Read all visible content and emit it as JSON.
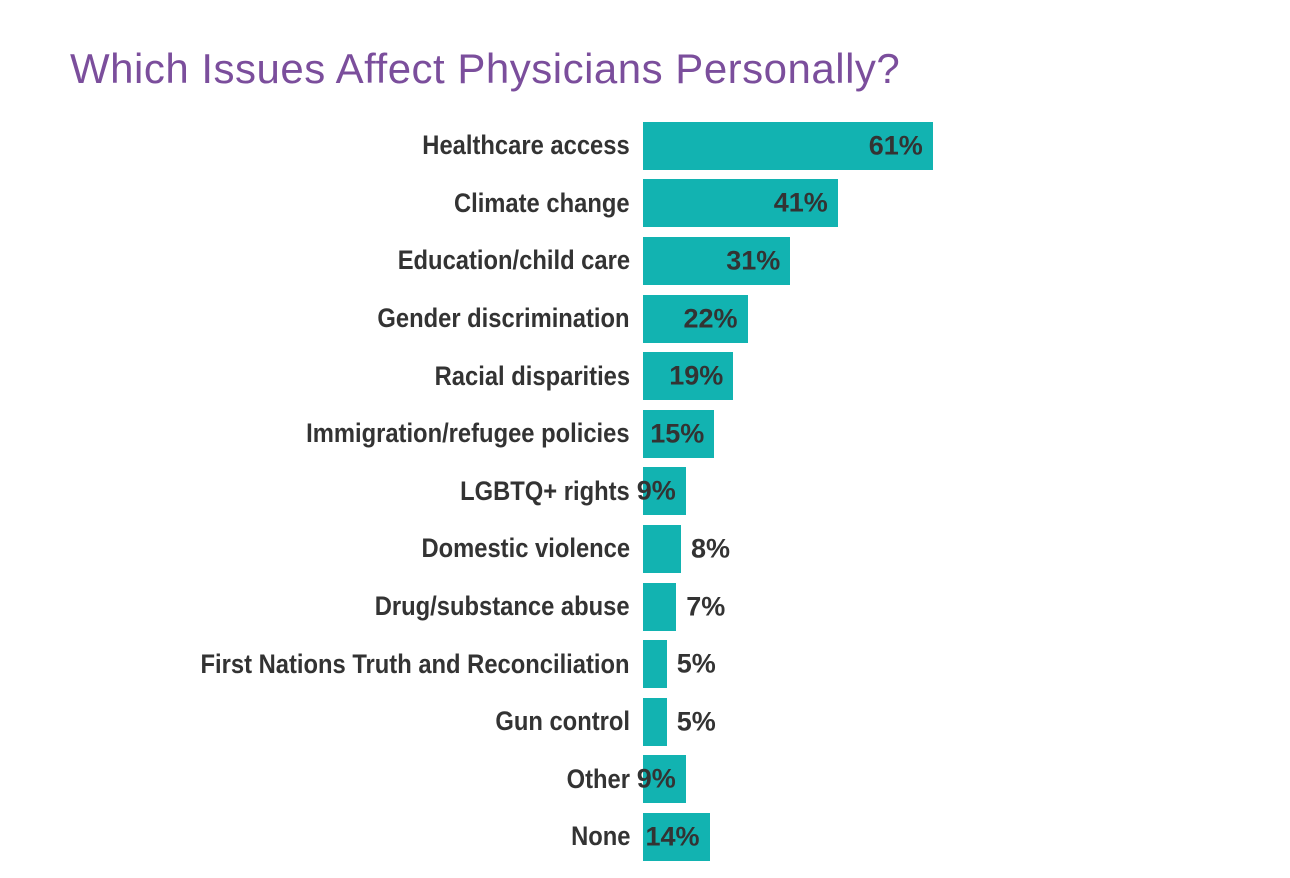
{
  "page": {
    "background": "#ffffff"
  },
  "title": {
    "text": "Which Issues Affect Physicians Personally?",
    "color": "#7B4E9C"
  },
  "chart_data": {
    "type": "bar",
    "orientation": "horizontal",
    "title": "Which Issues Affect Physicians Personally?",
    "xlabel": "",
    "ylabel": "",
    "unit": "%",
    "xlim": [
      0,
      65
    ],
    "grid": false,
    "legend": "none",
    "axes_visible": false,
    "bar_color": "#12B3B1",
    "label_color": "#333333",
    "categories": [
      "Healthcare access",
      "Climate change",
      "Education/child care",
      "Gender discrimination",
      "Racial disparities",
      "Immigration/refugee policies",
      "LGBTQ+ rights",
      "Domestic violence",
      "Drug/substance abuse",
      "First Nations Truth and Reconciliation",
      "Gun control",
      "Other",
      "None"
    ],
    "values": [
      61,
      41,
      31,
      22,
      19,
      15,
      9,
      8,
      7,
      5,
      5,
      9,
      14
    ],
    "value_labels": [
      "61%",
      "41%",
      "31%",
      "22%",
      "19%",
      "15%",
      "9%",
      "8%",
      "7%",
      "5%",
      "5%",
      "9%",
      "14%"
    ]
  }
}
